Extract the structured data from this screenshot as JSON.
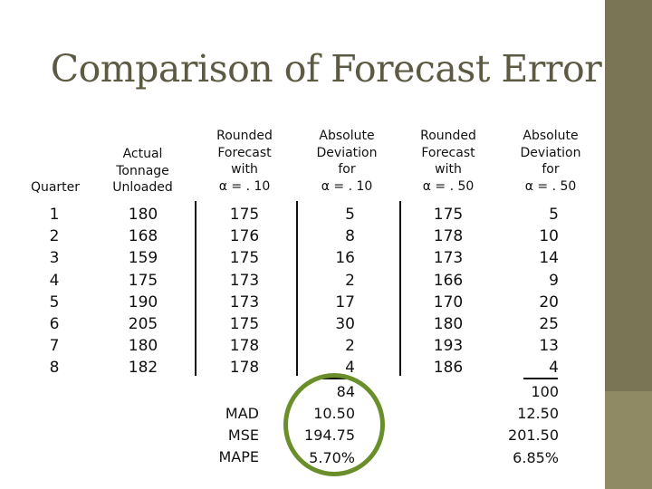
{
  "title": "Comparison of Forecast Error",
  "headers": {
    "quarter": "Quarter",
    "actual": [
      "Actual",
      "Tonnage",
      "Unloaded"
    ],
    "forecast10": [
      "Rounded",
      "Forecast",
      "with",
      "α = . 10"
    ],
    "deviation10": [
      "Absolute",
      "Deviation",
      "for",
      "α = . 10"
    ],
    "forecast50": [
      "Rounded",
      "Forecast",
      "with",
      "α = . 50"
    ],
    "deviation50": [
      "Absolute",
      "Deviation",
      "for",
      "α = . 50"
    ]
  },
  "columns": {
    "quarter": [
      "1",
      "2",
      "3",
      "4",
      "5",
      "6",
      "7",
      "8"
    ],
    "actual": [
      "180",
      "168",
      "159",
      "175",
      "190",
      "205",
      "180",
      "182"
    ],
    "forecast10": [
      "175",
      "176",
      "175",
      "173",
      "173",
      "175",
      "178",
      "178"
    ],
    "deviation10": [
      "5",
      "8",
      "16",
      "2",
      "17",
      "30",
      "2",
      "4"
    ],
    "forecast50": [
      "175",
      "178",
      "173",
      "166",
      "170",
      "180",
      "193",
      "186"
    ],
    "deviation50": [
      "5",
      "10",
      "14",
      "9",
      "20",
      "25",
      "13",
      "4"
    ]
  },
  "summary_labels": [
    "MAD",
    "MSE",
    "MAPE"
  ],
  "summary10": [
    "84",
    "10.50",
    "194.75",
    "5.70%"
  ],
  "summary50": [
    "100",
    "12.50",
    "201.50",
    "6.85%"
  ],
  "colors": {
    "title": "#5d5a43",
    "right_bar": "#7a7555",
    "highlight_circle": "#6a8f2a"
  }
}
